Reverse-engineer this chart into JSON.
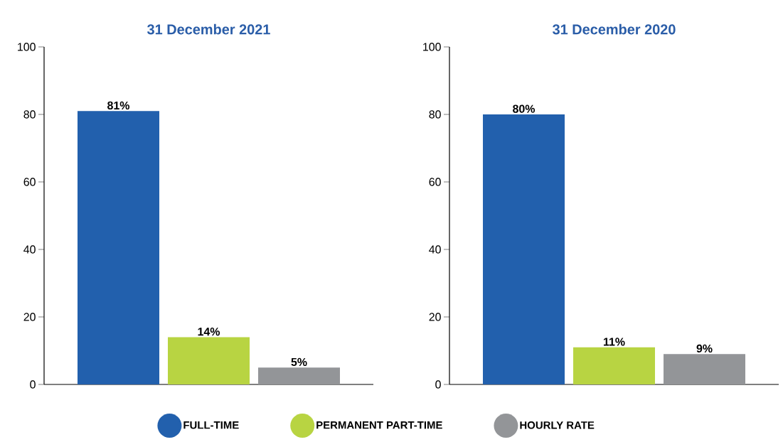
{
  "chart_data": [
    {
      "type": "bar",
      "title": "31 December 2021",
      "categories": [
        null
      ],
      "series": [
        {
          "name": "FULL-TIME",
          "color": "#2260ad",
          "values": [
            81
          ],
          "value_labels": [
            "81%"
          ]
        },
        {
          "name": "PERMANENT PART-TIME",
          "color": "#b8d442",
          "values": [
            14
          ],
          "value_labels": [
            "14%"
          ]
        },
        {
          "name": "HOURLY RATE",
          "color": "#939598",
          "values": [
            5
          ],
          "value_labels": [
            "5%"
          ]
        }
      ],
      "ylim": [
        0,
        100
      ],
      "yticks": [
        0,
        20,
        40,
        60,
        80,
        100
      ],
      "legend": "bottom"
    },
    {
      "type": "bar",
      "title": "31 December 2020",
      "categories": [
        null
      ],
      "series": [
        {
          "color": "#2260ad",
          "values": [
            80
          ],
          "value_labels": [
            "80%"
          ]
        },
        {
          "color": "#b8d442",
          "values": [
            11
          ],
          "value_labels": [
            "11%"
          ]
        },
        {
          "color": "#939598",
          "values": [
            9
          ],
          "value_labels": [
            "9%"
          ]
        }
      ],
      "ylim": [
        0,
        100
      ],
      "yticks": [
        0,
        20,
        40,
        60,
        80,
        100
      ]
    }
  ]
}
